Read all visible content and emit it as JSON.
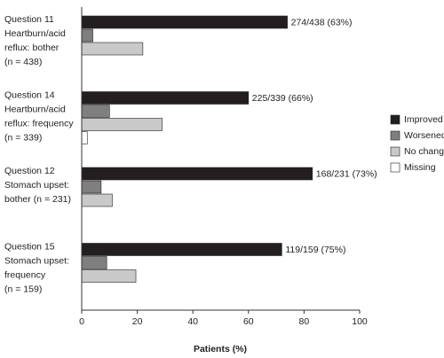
{
  "chart_data": {
    "type": "bar",
    "orientation": "horizontal",
    "categories": [
      [
        "Question 11",
        "Heartburn/acid",
        "reflux: bother",
        "(n = 438)"
      ],
      [
        "Question 14",
        "Heartburn/acid",
        "reflux: frequency",
        "(n = 339)"
      ],
      [
        "Question 12",
        "Stomach upset:",
        "bother (n = 231)"
      ],
      [
        "Question 15",
        "Stomach upset:",
        "frequency",
        "(n = 159)"
      ]
    ],
    "series": [
      {
        "name": "Improved",
        "color": "#231f20",
        "values": [
          74,
          60,
          83,
          72
        ]
      },
      {
        "name": "Worsened",
        "color": "#7f7f7f",
        "values": [
          4,
          10,
          7,
          9
        ]
      },
      {
        "name": "No change",
        "color": "#c9c9c9",
        "values": [
          22,
          29,
          11,
          19.5
        ]
      },
      {
        "name": "Missing",
        "color": "#ffffff",
        "values": [
          null,
          2,
          null,
          null
        ]
      }
    ],
    "annotations": [
      "274/438 (63%)",
      "225/339 (66%)",
      "168/231 (73%)",
      "119/159 (75%)"
    ],
    "xlabel": "Patients (%)",
    "xlim": [
      0,
      100
    ],
    "xticks": [
      0,
      20,
      40,
      60,
      80,
      100
    ],
    "legend": "right"
  }
}
